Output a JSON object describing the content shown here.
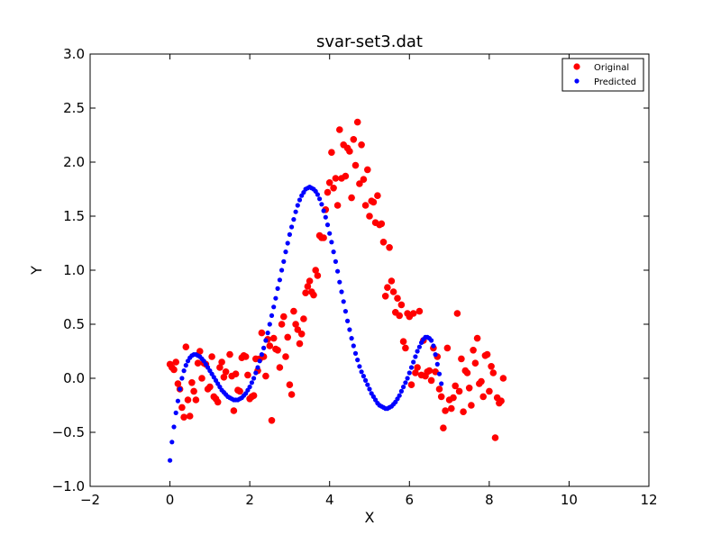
{
  "chart_data": {
    "type": "scatter",
    "title": "svar-set3.dat",
    "xlabel": "X",
    "ylabel": "Y",
    "xlim": [
      -2,
      12
    ],
    "ylim": [
      -1.0,
      3.0
    ],
    "xticks": [
      "−2",
      "0",
      "2",
      "4",
      "6",
      "8",
      "10",
      "12"
    ],
    "xtick_values": [
      -2,
      0,
      2,
      4,
      6,
      8,
      10,
      12
    ],
    "yticks": [
      "−1.0",
      "−0.5",
      "0.0",
      "0.5",
      "1.0",
      "1.5",
      "2.0",
      "2.5",
      "3.0"
    ],
    "ytick_values": [
      -1.0,
      -0.5,
      0.0,
      0.5,
      1.0,
      1.5,
      2.0,
      2.5,
      3.0
    ],
    "grid": false,
    "legend_position": "top-right",
    "series": [
      {
        "name": "Original",
        "color": "#ff0000",
        "marker": "circle-large",
        "points": [
          [
            0.0,
            0.13
          ],
          [
            0.05,
            0.1
          ],
          [
            0.1,
            0.08
          ],
          [
            0.15,
            0.15
          ],
          [
            0.2,
            -0.05
          ],
          [
            0.25,
            -0.1
          ],
          [
            0.3,
            -0.27
          ],
          [
            0.35,
            -0.36
          ],
          [
            0.4,
            0.29
          ],
          [
            0.45,
            -0.2
          ],
          [
            0.5,
            -0.35
          ],
          [
            0.55,
            -0.04
          ],
          [
            0.6,
            -0.12
          ],
          [
            0.65,
            -0.2
          ],
          [
            0.7,
            0.14
          ],
          [
            0.75,
            0.25
          ],
          [
            0.8,
            0.0
          ],
          [
            0.85,
            0.14
          ],
          [
            0.9,
            0.13
          ],
          [
            0.95,
            -0.1
          ],
          [
            1.0,
            -0.08
          ],
          [
            1.05,
            0.2
          ],
          [
            1.1,
            -0.17
          ],
          [
            1.15,
            -0.19
          ],
          [
            1.2,
            -0.22
          ],
          [
            1.25,
            0.1
          ],
          [
            1.3,
            0.15
          ],
          [
            1.35,
            0.01
          ],
          [
            1.4,
            0.06
          ],
          [
            1.5,
            0.22
          ],
          [
            1.55,
            0.02
          ],
          [
            1.6,
            -0.3
          ],
          [
            1.65,
            0.04
          ],
          [
            1.7,
            -0.11
          ],
          [
            1.75,
            -0.12
          ],
          [
            1.8,
            0.19
          ],
          [
            1.85,
            0.21
          ],
          [
            1.9,
            0.2
          ],
          [
            1.95,
            0.03
          ],
          [
            2.0,
            -0.19
          ],
          [
            2.05,
            -0.17
          ],
          [
            2.1,
            -0.16
          ],
          [
            2.15,
            0.18
          ],
          [
            2.2,
            0.07
          ],
          [
            2.25,
            0.18
          ],
          [
            2.3,
            0.42
          ],
          [
            2.35,
            0.2
          ],
          [
            2.4,
            0.02
          ],
          [
            2.45,
            0.36
          ],
          [
            2.5,
            0.3
          ],
          [
            2.55,
            -0.39
          ],
          [
            2.6,
            0.37
          ],
          [
            2.65,
            0.27
          ],
          [
            2.7,
            0.26
          ],
          [
            2.75,
            0.1
          ],
          [
            2.8,
            0.5
          ],
          [
            2.85,
            0.57
          ],
          [
            2.9,
            0.2
          ],
          [
            2.95,
            0.38
          ],
          [
            3.0,
            -0.06
          ],
          [
            3.05,
            -0.15
          ],
          [
            3.1,
            0.62
          ],
          [
            3.15,
            0.5
          ],
          [
            3.2,
            0.45
          ],
          [
            3.25,
            0.32
          ],
          [
            3.3,
            0.41
          ],
          [
            3.35,
            0.55
          ],
          [
            3.4,
            0.79
          ],
          [
            3.45,
            0.85
          ],
          [
            3.5,
            0.9
          ],
          [
            3.55,
            0.8
          ],
          [
            3.6,
            0.77
          ],
          [
            3.65,
            1.0
          ],
          [
            3.7,
            0.95
          ],
          [
            3.75,
            1.32
          ],
          [
            3.8,
            1.3
          ],
          [
            3.85,
            1.3
          ],
          [
            3.9,
            1.56
          ],
          [
            3.95,
            1.72
          ],
          [
            4.0,
            1.81
          ],
          [
            4.05,
            2.09
          ],
          [
            4.1,
            1.76
          ],
          [
            4.15,
            1.85
          ],
          [
            4.2,
            1.6
          ],
          [
            4.25,
            2.3
          ],
          [
            4.3,
            1.85
          ],
          [
            4.35,
            2.16
          ],
          [
            4.4,
            1.87
          ],
          [
            4.45,
            2.13
          ],
          [
            4.5,
            2.1
          ],
          [
            4.55,
            1.67
          ],
          [
            4.6,
            2.21
          ],
          [
            4.65,
            1.97
          ],
          [
            4.7,
            2.37
          ],
          [
            4.75,
            1.8
          ],
          [
            4.8,
            2.16
          ],
          [
            4.85,
            1.84
          ],
          [
            4.9,
            1.6
          ],
          [
            4.95,
            1.93
          ],
          [
            5.0,
            1.5
          ],
          [
            5.05,
            1.64
          ],
          [
            5.1,
            1.63
          ],
          [
            5.15,
            1.44
          ],
          [
            5.2,
            1.69
          ],
          [
            5.25,
            1.42
          ],
          [
            5.3,
            1.43
          ],
          [
            5.35,
            1.26
          ],
          [
            5.4,
            0.76
          ],
          [
            5.45,
            0.84
          ],
          [
            5.5,
            1.21
          ],
          [
            5.55,
            0.9
          ],
          [
            5.6,
            0.8
          ],
          [
            5.65,
            0.61
          ],
          [
            5.7,
            0.74
          ],
          [
            5.75,
            0.58
          ],
          [
            5.8,
            0.68
          ],
          [
            5.85,
            0.34
          ],
          [
            5.9,
            0.28
          ],
          [
            5.95,
            0.6
          ],
          [
            6.0,
            0.57
          ],
          [
            6.05,
            -0.06
          ],
          [
            6.1,
            0.6
          ],
          [
            6.15,
            0.05
          ],
          [
            6.2,
            0.1
          ],
          [
            6.25,
            0.62
          ],
          [
            6.3,
            0.03
          ],
          [
            6.35,
            0.35
          ],
          [
            6.4,
            0.02
          ],
          [
            6.45,
            0.06
          ],
          [
            6.5,
            0.07
          ],
          [
            6.55,
            -0.02
          ],
          [
            6.6,
            0.28
          ],
          [
            6.65,
            0.06
          ],
          [
            6.7,
            0.2
          ],
          [
            6.75,
            -0.1
          ],
          [
            6.8,
            -0.17
          ],
          [
            6.85,
            -0.46
          ],
          [
            6.9,
            -0.3
          ],
          [
            6.95,
            0.28
          ],
          [
            7.0,
            -0.2
          ],
          [
            7.05,
            -0.28
          ],
          [
            7.1,
            -0.18
          ],
          [
            7.15,
            -0.07
          ],
          [
            7.2,
            0.6
          ],
          [
            7.25,
            -0.12
          ],
          [
            7.3,
            0.18
          ],
          [
            7.35,
            -0.31
          ],
          [
            7.4,
            0.07
          ],
          [
            7.45,
            0.05
          ],
          [
            7.5,
            -0.09
          ],
          [
            7.55,
            -0.25
          ],
          [
            7.6,
            0.26
          ],
          [
            7.65,
            0.14
          ],
          [
            7.7,
            0.37
          ],
          [
            7.75,
            -0.05
          ],
          [
            7.8,
            -0.03
          ],
          [
            7.85,
            -0.17
          ],
          [
            7.9,
            0.21
          ],
          [
            7.95,
            0.22
          ],
          [
            8.0,
            -0.12
          ],
          [
            8.05,
            0.11
          ],
          [
            8.1,
            0.05
          ],
          [
            8.15,
            -0.55
          ],
          [
            8.2,
            -0.18
          ],
          [
            8.25,
            -0.23
          ],
          [
            8.3,
            -0.21
          ],
          [
            8.35,
            0.0
          ]
        ]
      },
      {
        "name": "Predicted",
        "color": "#0000ff",
        "marker": "circle-small",
        "points": [
          [
            0.0,
            -0.76
          ],
          [
            0.05,
            -0.59
          ],
          [
            0.1,
            -0.45
          ],
          [
            0.15,
            -0.32
          ],
          [
            0.2,
            -0.21
          ],
          [
            0.25,
            -0.1
          ],
          [
            0.3,
            0.0
          ],
          [
            0.35,
            0.07
          ],
          [
            0.4,
            0.12
          ],
          [
            0.45,
            0.16
          ],
          [
            0.5,
            0.19
          ],
          [
            0.55,
            0.21
          ],
          [
            0.6,
            0.22
          ],
          [
            0.65,
            0.22
          ],
          [
            0.7,
            0.21
          ],
          [
            0.75,
            0.2
          ],
          [
            0.8,
            0.18
          ],
          [
            0.85,
            0.16
          ],
          [
            0.9,
            0.13
          ],
          [
            0.95,
            0.1
          ],
          [
            1.0,
            0.07
          ],
          [
            1.05,
            0.04
          ],
          [
            1.1,
            0.01
          ],
          [
            1.15,
            -0.02
          ],
          [
            1.2,
            -0.05
          ],
          [
            1.25,
            -0.08
          ],
          [
            1.3,
            -0.11
          ],
          [
            1.35,
            -0.13
          ],
          [
            1.4,
            -0.15
          ],
          [
            1.45,
            -0.17
          ],
          [
            1.5,
            -0.18
          ],
          [
            1.55,
            -0.19
          ],
          [
            1.6,
            -0.2
          ],
          [
            1.65,
            -0.2
          ],
          [
            1.7,
            -0.2
          ],
          [
            1.75,
            -0.19
          ],
          [
            1.8,
            -0.18
          ],
          [
            1.85,
            -0.16
          ],
          [
            1.9,
            -0.14
          ],
          [
            1.95,
            -0.11
          ],
          [
            2.0,
            -0.08
          ],
          [
            2.05,
            -0.04
          ],
          [
            2.1,
            0.0
          ],
          [
            2.15,
            0.05
          ],
          [
            2.2,
            0.1
          ],
          [
            2.25,
            0.16
          ],
          [
            2.3,
            0.22
          ],
          [
            2.35,
            0.28
          ],
          [
            2.4,
            0.35
          ],
          [
            2.45,
            0.42
          ],
          [
            2.5,
            0.5
          ],
          [
            2.55,
            0.58
          ],
          [
            2.6,
            0.66
          ],
          [
            2.65,
            0.74
          ],
          [
            2.7,
            0.83
          ],
          [
            2.75,
            0.91
          ],
          [
            2.8,
            1.0
          ],
          [
            2.85,
            1.08
          ],
          [
            2.9,
            1.17
          ],
          [
            2.95,
            1.25
          ],
          [
            3.0,
            1.33
          ],
          [
            3.05,
            1.4
          ],
          [
            3.1,
            1.47
          ],
          [
            3.15,
            1.54
          ],
          [
            3.2,
            1.6
          ],
          [
            3.25,
            1.65
          ],
          [
            3.3,
            1.69
          ],
          [
            3.35,
            1.72
          ],
          [
            3.4,
            1.75
          ],
          [
            3.45,
            1.76
          ],
          [
            3.5,
            1.77
          ],
          [
            3.55,
            1.76
          ],
          [
            3.6,
            1.75
          ],
          [
            3.65,
            1.73
          ],
          [
            3.7,
            1.7
          ],
          [
            3.75,
            1.66
          ],
          [
            3.8,
            1.61
          ],
          [
            3.85,
            1.55
          ],
          [
            3.9,
            1.49
          ],
          [
            3.95,
            1.42
          ],
          [
            4.0,
            1.34
          ],
          [
            4.05,
            1.26
          ],
          [
            4.1,
            1.17
          ],
          [
            4.15,
            1.08
          ],
          [
            4.2,
            0.99
          ],
          [
            4.25,
            0.89
          ],
          [
            4.3,
            0.8
          ],
          [
            4.35,
            0.71
          ],
          [
            4.4,
            0.62
          ],
          [
            4.45,
            0.53
          ],
          [
            4.5,
            0.45
          ],
          [
            4.55,
            0.37
          ],
          [
            4.6,
            0.3
          ],
          [
            4.65,
            0.23
          ],
          [
            4.7,
            0.17
          ],
          [
            4.75,
            0.11
          ],
          [
            4.8,
            0.06
          ],
          [
            4.85,
            0.02
          ],
          [
            4.9,
            -0.02
          ],
          [
            4.95,
            -0.06
          ],
          [
            5.0,
            -0.1
          ],
          [
            5.05,
            -0.14
          ],
          [
            5.1,
            -0.17
          ],
          [
            5.15,
            -0.2
          ],
          [
            5.2,
            -0.23
          ],
          [
            5.25,
            -0.25
          ],
          [
            5.3,
            -0.26
          ],
          [
            5.35,
            -0.27
          ],
          [
            5.4,
            -0.28
          ],
          [
            5.45,
            -0.28
          ],
          [
            5.5,
            -0.27
          ],
          [
            5.55,
            -0.26
          ],
          [
            5.6,
            -0.24
          ],
          [
            5.65,
            -0.22
          ],
          [
            5.7,
            -0.19
          ],
          [
            5.75,
            -0.16
          ],
          [
            5.8,
            -0.12
          ],
          [
            5.85,
            -0.08
          ],
          [
            5.9,
            -0.04
          ],
          [
            5.95,
            0.0
          ],
          [
            6.0,
            0.05
          ],
          [
            6.05,
            0.1
          ],
          [
            6.1,
            0.15
          ],
          [
            6.15,
            0.2
          ],
          [
            6.2,
            0.25
          ],
          [
            6.25,
            0.29
          ],
          [
            6.3,
            0.33
          ],
          [
            6.35,
            0.36
          ],
          [
            6.4,
            0.38
          ],
          [
            6.45,
            0.38
          ],
          [
            6.5,
            0.37
          ],
          [
            6.55,
            0.35
          ],
          [
            6.6,
            0.3
          ],
          [
            6.65,
            0.22
          ],
          [
            6.7,
            0.13
          ],
          [
            6.75,
            0.04
          ],
          [
            6.8,
            -0.05
          ]
        ]
      }
    ]
  }
}
